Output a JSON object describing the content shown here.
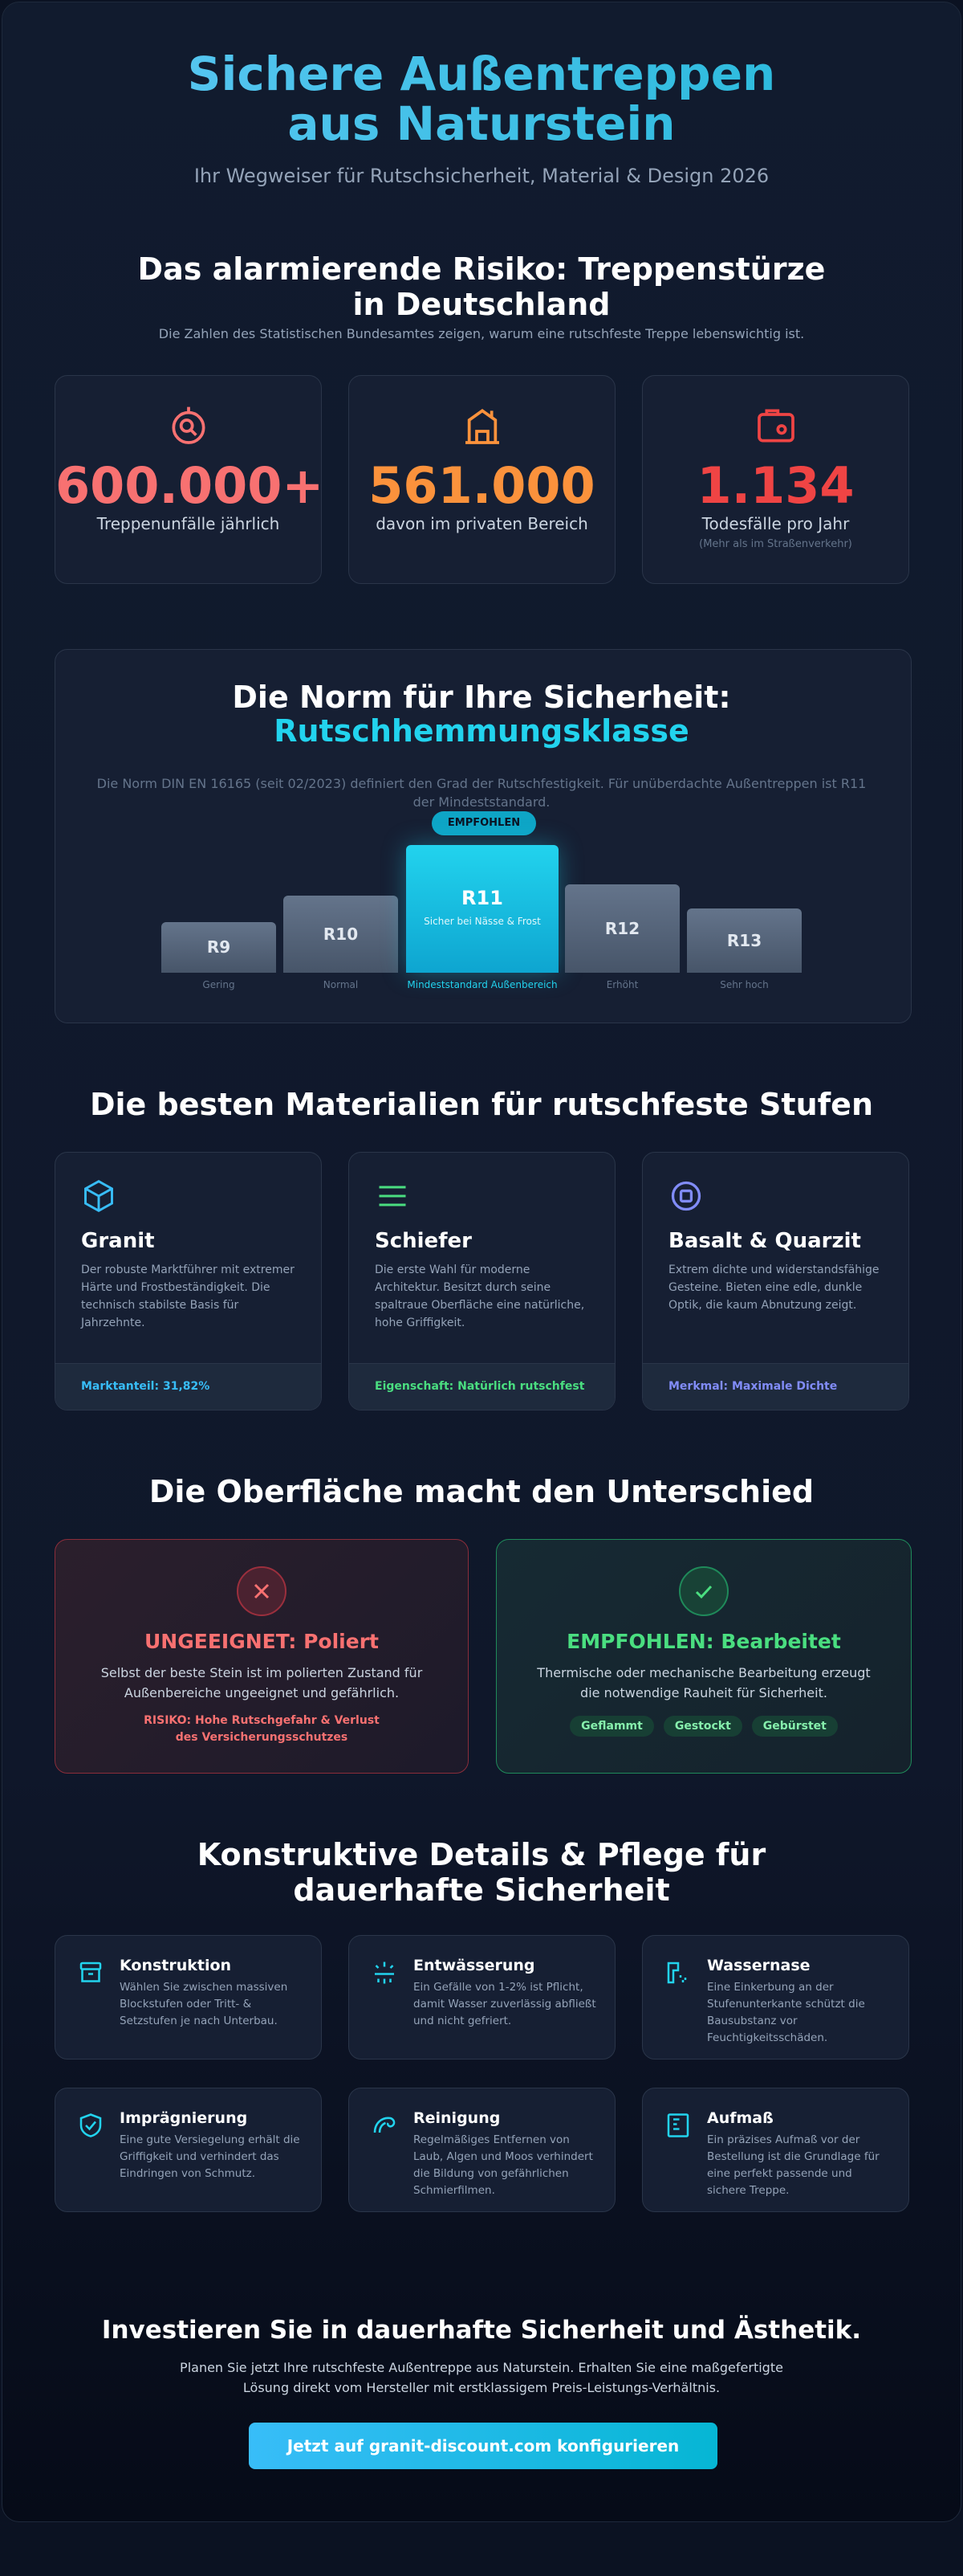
{
  "header": {
    "title": "Sichere Außentreppen aus Naturstein",
    "subtitle": "Ihr Wegweiser für Rutschsicherheit, Material & Design 2026"
  },
  "risk": {
    "title": "Das alarmierende Risiko: Treppenstürze in Deutschland",
    "subtitle": "Die Zahlen des Statistischen Bundesamtes zeigen, warum eine rutschfeste Treppe lebenswichtig ist.",
    "stats": [
      {
        "value": "600.000+",
        "label": "Treppenunfälle jährlich"
      },
      {
        "value": "561.000",
        "label": "davon im privaten Bereich"
      },
      {
        "value": "1.134",
        "label": "Todesfälle pro Jahr",
        "note": "(Mehr als im Straßenverkehr)"
      }
    ]
  },
  "norm": {
    "title": "Die Norm für Ihre Sicherheit:",
    "highlight": "Rutschhemmungsklasse",
    "text": "Die Norm DIN EN 16165 (seit 02/2023) definiert den Grad der Rutschfestigkeit. Für unüberdachte Außentreppen ist R11 der Mindeststandard.",
    "badge": "EMPFOHLEN",
    "classes": [
      {
        "name": "R9",
        "label": "Gering"
      },
      {
        "name": "R10",
        "label": "Normal"
      },
      {
        "name": "R11",
        "sublabel": "Sicher bei Nässe & Frost",
        "label": "Mindeststandard Außenbereich"
      },
      {
        "name": "R12",
        "label": "Erhöht"
      },
      {
        "name": "R13",
        "label": "Sehr hoch"
      }
    ]
  },
  "materials": {
    "title": "Die besten Materialien für rutschfeste Stufen",
    "items": [
      {
        "name": "Granit",
        "text": "Der robuste Marktführer mit extremer Härte und Frostbeständigkeit. Die technisch stabilste Basis für Jahrzehnte.",
        "footer": "Marktanteil: 31,82%"
      },
      {
        "name": "Schiefer",
        "text": "Die erste Wahl für moderne Architektur. Besitzt durch seine spaltraue Oberfläche eine natürliche, hohe Griffigkeit.",
        "footer": "Eigenschaft: Natürlich rutschfest"
      },
      {
        "name": "Basalt & Quarzit",
        "text": "Extrem dichte und widerstandsfähige Gesteine. Bieten eine edle, dunkle Optik, die kaum Abnutzung zeigt.",
        "footer": "Merkmal: Maximale Dichte"
      }
    ]
  },
  "surface": {
    "title": "Die Oberfläche macht den Unterschied",
    "bad": {
      "title": "UNGEEIGNET: Poliert",
      "text": "Selbst der beste Stein ist im polierten Zustand für Außenbereiche ungeeignet und gefährlich.",
      "warning": "RISIKO: Hohe Rutschgefahr & Verlust des Versicherungsschutzes"
    },
    "good": {
      "title": "EMPFOHLEN: Bearbeitet",
      "text": "Thermische oder mechanische Bearbeitung erzeugt die notwendige Rauheit für Sicherheit.",
      "tags": [
        "Geflammt",
        "Gestockt",
        "Gebürstet"
      ]
    }
  },
  "details": {
    "title": "Konstruktive Details & Pflege für dauerhafte Sicherheit",
    "items": [
      {
        "title": "Konstruktion",
        "text": "Wählen Sie zwischen massiven Blockstufen oder Tritt- & Setzstufen je nach Unterbau."
      },
      {
        "title": "Entwässerung",
        "text": "Ein Gefälle von 1-2% ist Pflicht, damit Wasser zuverlässig abfließt und nicht gefriert."
      },
      {
        "title": "Wassernase",
        "text": "Eine Einkerbung an der Stufenunterkante schützt die Bausubstanz vor Feuchtigkeitsschäden."
      },
      {
        "title": "Imprägnierung",
        "text": "Eine gute Versiegelung erhält die Griffigkeit und verhindert das Eindringen von Schmutz."
      },
      {
        "title": "Reinigung",
        "text": "Regelmäßiges Entfernen von Laub, Algen und Moos verhindert die Bildung von gefährlichen Schmierfilmen."
      },
      {
        "title": "Aufmaß",
        "text": "Ein präzises Aufmaß vor der Bestellung ist die Grundlage für eine perfekt passende und sichere Treppe."
      }
    ]
  },
  "cta": {
    "title": "Investieren Sie in dauerhafte Sicherheit und Ästhetik.",
    "text": "Planen Sie jetzt Ihre rutschfeste Außentreppe aus Naturstein. Erhalten Sie eine maßgefertigte Lösung direkt vom Hersteller mit erstklassigem Preis-Leistungs-Verhältnis.",
    "button": "Jetzt auf granit-discount.com konfigurieren"
  }
}
